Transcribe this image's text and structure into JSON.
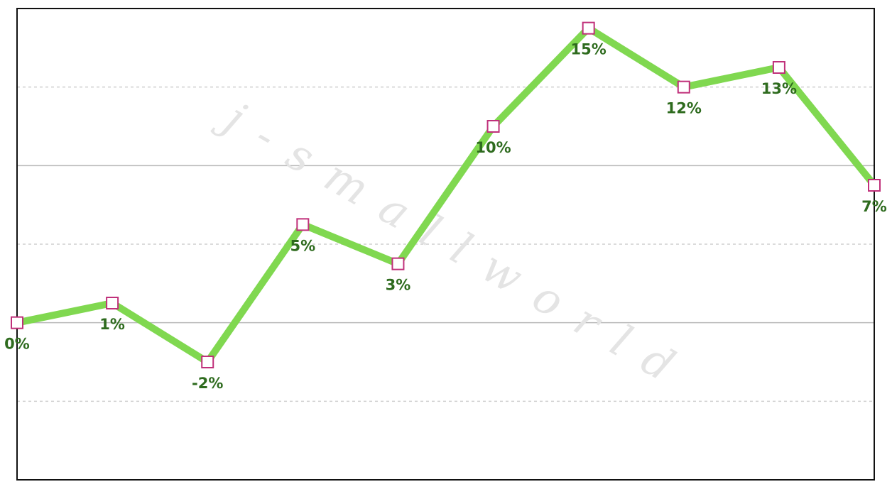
{
  "chart_data": {
    "type": "line",
    "watermark": "j-smallworld",
    "categories": [
      null,
      null,
      null,
      null,
      null,
      null,
      null,
      null,
      null,
      null
    ],
    "series": [
      {
        "color": "#80d850",
        "marker_color": "#c0307a",
        "values": [
          0,
          1,
          -2,
          5,
          3,
          10,
          15,
          12,
          13,
          7
        ],
        "value_labels": [
          "0%",
          "1%",
          "-2%",
          "5%",
          "3%",
          "10%",
          "15%",
          "12%",
          "13%",
          "7%"
        ]
      }
    ],
    "ylim": [
      -8,
      16
    ],
    "solid_gridlines": [
      0,
      8
    ],
    "dashed_gridlines": [
      -4,
      4,
      12
    ]
  }
}
